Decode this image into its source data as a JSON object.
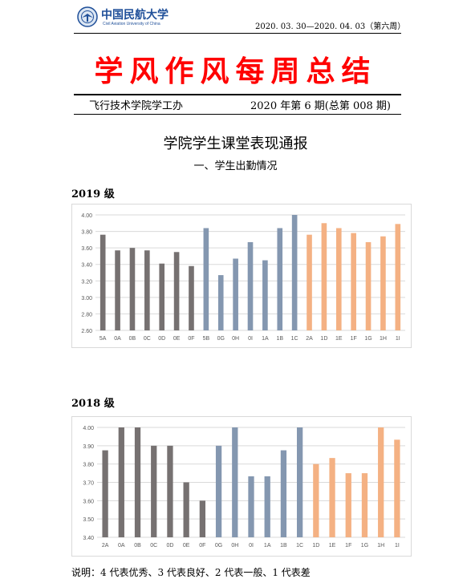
{
  "header": {
    "university_cn": "中国民航大学",
    "university_en": "Civil Aviation University of China",
    "date_range": "2020. 03. 30—2020. 04. 03（第六周）"
  },
  "main_title": "学风作风每周总结",
  "department": "飞行技术学院学工办",
  "issue": "2020 年第 6 期(总第 008 期)",
  "section_title": "学院学生课堂表现通报",
  "subsection_title": "一、学生出勤情况",
  "footer_note": "说明：4 代表优秀、3 代表良好、2 代表一般、1 代表差",
  "colors": {
    "gray": "#767171",
    "blue": "#8497b0",
    "orange": "#f4b183",
    "title_red": "#ff0000"
  },
  "chart_data": [
    {
      "type": "bar",
      "grade_label": "2019 级",
      "categories": [
        "5A",
        "0A",
        "0B",
        "0C",
        "0D",
        "0E",
        "0F",
        "5B",
        "0G",
        "0H",
        "0I",
        "1A",
        "1B",
        "1C",
        "2A",
        "1D",
        "1E",
        "1F",
        "1G",
        "1H",
        "1I"
      ],
      "values": [
        3.76,
        3.57,
        3.6,
        3.57,
        3.41,
        3.55,
        3.38,
        3.84,
        3.27,
        3.47,
        3.67,
        3.45,
        3.84,
        4.0,
        3.76,
        3.9,
        3.84,
        3.78,
        3.67,
        3.74,
        3.89
      ],
      "color_groups": [
        "gray",
        "gray",
        "gray",
        "gray",
        "gray",
        "gray",
        "gray",
        "blue",
        "blue",
        "blue",
        "blue",
        "blue",
        "blue",
        "blue",
        "orange",
        "orange",
        "orange",
        "orange",
        "orange",
        "orange",
        "orange"
      ],
      "yticks": [
        "4.00",
        "3.80",
        "3.60",
        "3.40",
        "3.20",
        "3.00",
        "2.80",
        "2.60"
      ],
      "ylim": [
        2.6,
        4.0
      ],
      "grid": true
    },
    {
      "type": "bar",
      "grade_label": "2018 级",
      "categories": [
        "2A",
        "0A",
        "0B",
        "0C",
        "0D",
        "0E",
        "0F",
        "0G",
        "0H",
        "0I",
        "1A",
        "1B",
        "1C",
        "1D",
        "1E",
        "1F",
        "1G",
        "1H",
        "1I"
      ],
      "values": [
        3.875,
        4.0,
        4.0,
        3.9,
        3.9,
        3.7,
        3.6,
        3.9,
        4.0,
        3.733,
        3.733,
        3.875,
        4.0,
        3.8,
        3.833,
        3.75,
        3.75,
        4.0,
        3.933
      ],
      "color_groups": [
        "gray",
        "gray",
        "gray",
        "gray",
        "gray",
        "gray",
        "gray",
        "blue",
        "blue",
        "blue",
        "blue",
        "blue",
        "blue",
        "orange",
        "orange",
        "orange",
        "orange",
        "orange",
        "orange"
      ],
      "yticks": [
        "4.00",
        "3.90",
        "3.80",
        "3.70",
        "3.60",
        "3.50",
        "3.40"
      ],
      "ylim": [
        3.4,
        4.0
      ],
      "grid": true
    }
  ]
}
